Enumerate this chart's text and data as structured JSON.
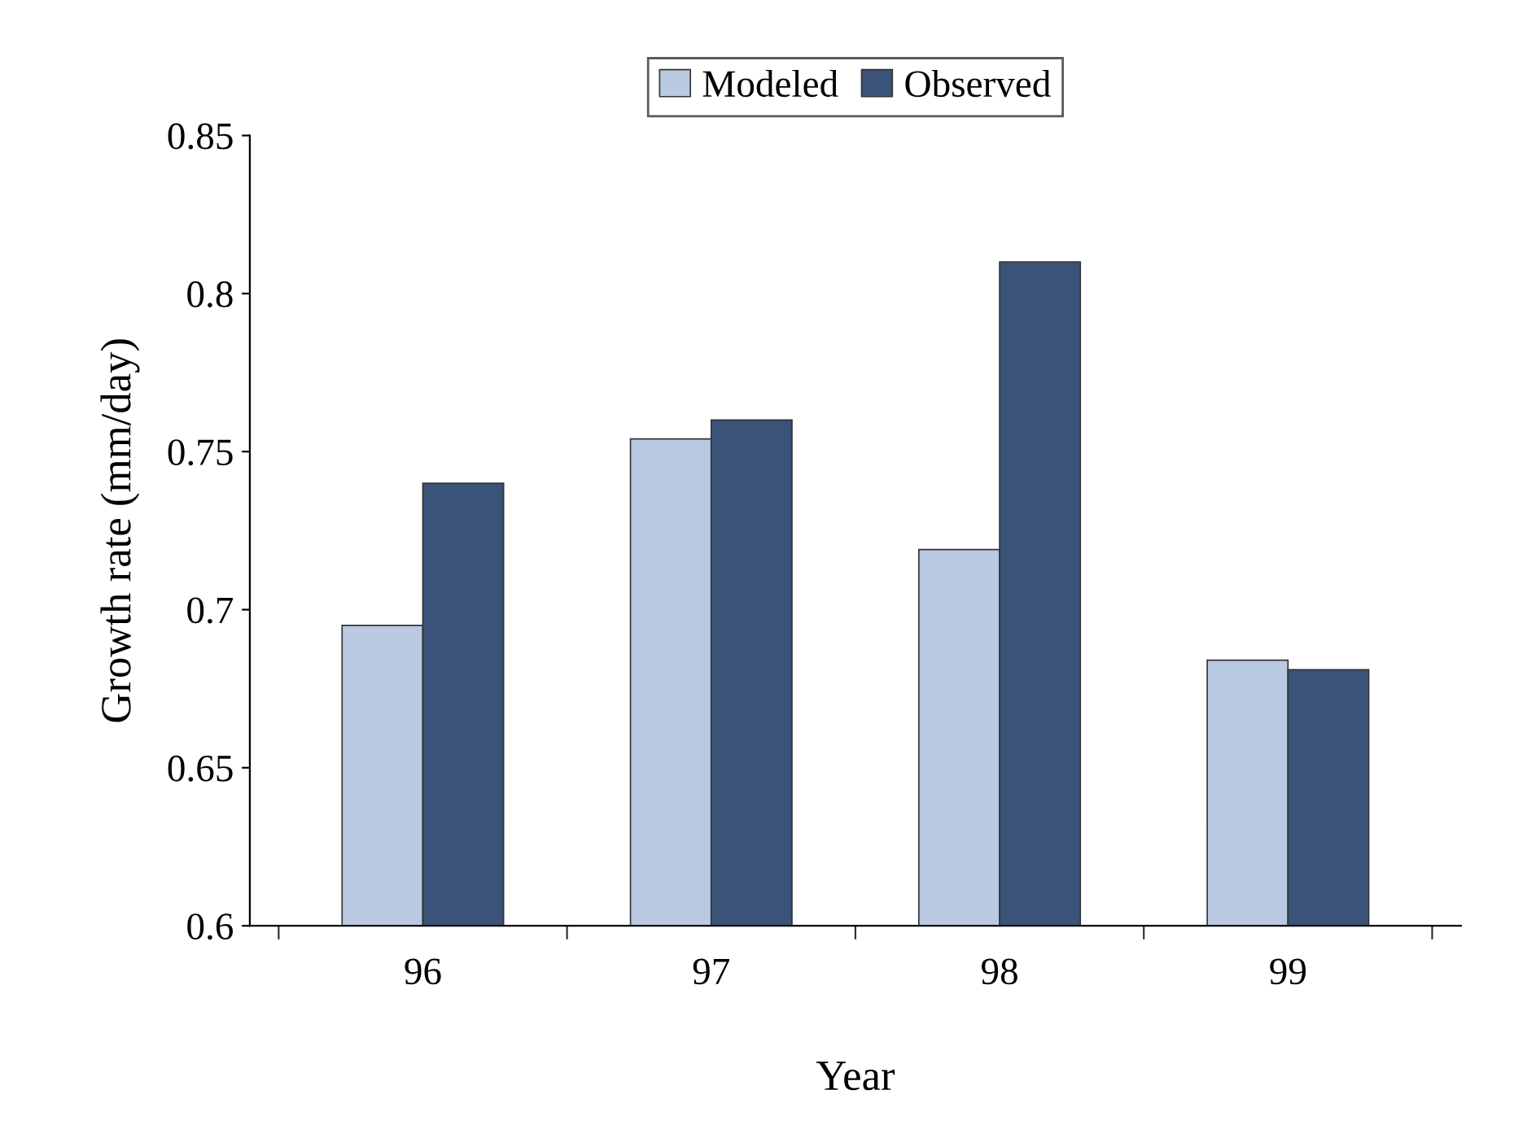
{
  "chart_data": {
    "type": "bar",
    "xlabel": "Year",
    "ylabel": "Growth rate (mm/day)",
    "categories": [
      "96",
      "97",
      "98",
      "99"
    ],
    "series": [
      {
        "name": "Modeled",
        "color": "#b9c9e1",
        "values": [
          0.695,
          0.754,
          0.719,
          0.684
        ]
      },
      {
        "name": "Observed",
        "color": "#3b5279",
        "values": [
          0.74,
          0.76,
          0.81,
          0.681
        ]
      }
    ],
    "ylim": [
      0.6,
      0.85
    ],
    "yticks": [
      0.6,
      0.65,
      0.7,
      0.75,
      0.8,
      0.85
    ],
    "grid": false,
    "legend": "top"
  }
}
